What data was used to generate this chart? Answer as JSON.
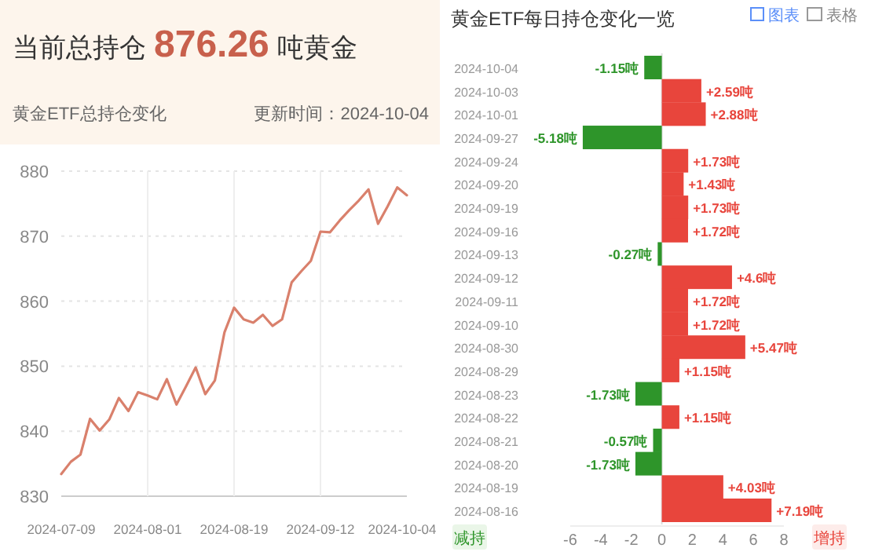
{
  "chart_data": [
    {
      "type": "line",
      "title": "当前总持仓 876.26 吨黄金",
      "subtitle": "黄金ETF总持仓变化",
      "annotations": [
        "更新时间：2024-10-04"
      ],
      "categories": [
        "2024-07-09",
        null,
        null,
        null,
        null,
        null,
        null,
        null,
        null,
        "2024-08-01",
        null,
        null,
        null,
        null,
        null,
        null,
        null,
        null,
        "2024-08-19",
        null,
        null,
        null,
        null,
        null,
        null,
        null,
        null,
        "2024-09-12",
        null,
        null,
        null,
        null,
        null,
        null,
        null,
        null,
        "2024-10-04"
      ],
      "series": [
        {
          "color": "#d9806c",
          "values": [
            833.4,
            835.3,
            836.4,
            841.9,
            840.1,
            841.8,
            845.1,
            843.1,
            846.0,
            845.5,
            844.9,
            848.0,
            844.1,
            846.9,
            849.8,
            845.7,
            847.8,
            855.2,
            859.0,
            857.2,
            856.7,
            857.9,
            856.2,
            857.2,
            862.9,
            864.6,
            866.2,
            870.7,
            870.6,
            872.4,
            874.0,
            875.5,
            877.2,
            871.9,
            874.6,
            877.5,
            876.3
          ]
        }
      ],
      "ylim": [
        830,
        880
      ],
      "yticks": [
        830,
        840,
        850,
        860,
        870,
        880
      ],
      "grid": true
    },
    {
      "type": "bar",
      "orientation": "horizontal",
      "title": "黄金ETF每日持仓变化一览",
      "annotations": [
        "图表",
        "表格",
        "减持",
        "增持"
      ],
      "categories": [
        "2024-10-04",
        "2024-10-03",
        "2024-10-01",
        "2024-09-27",
        "2024-09-24",
        "2024-09-20",
        "2024-09-19",
        "2024-09-16",
        "2024-09-13",
        "2024-09-12",
        "2024-09-11",
        "2024-09-10",
        "2024-08-30",
        "2024-08-29",
        "2024-08-23",
        "2024-08-22",
        "2024-08-21",
        "2024-08-20",
        "2024-08-19",
        "2024-08-16"
      ],
      "values": [
        -1.15,
        2.59,
        2.88,
        -5.18,
        1.73,
        1.43,
        1.73,
        1.72,
        -0.27,
        4.6,
        1.72,
        1.72,
        5.47,
        1.15,
        -1.73,
        1.15,
        -0.57,
        -1.73,
        4.03,
        7.19
      ],
      "colors": [
        "#2e952a",
        "#e8453c",
        "#e8453c",
        "#2e952a",
        "#e8453c",
        "#e8453c",
        "#e8453c",
        "#e8453c",
        "#2e952a",
        "#e8453c",
        "#e8453c",
        "#e8453c",
        "#e8453c",
        "#e8453c",
        "#2e952a",
        "#e8453c",
        "#2e952a",
        "#2e952a",
        "#e8453c",
        "#e8453c"
      ],
      "value_labels": [
        "-1.15吨",
        "+2.59吨",
        "+2.88吨",
        "-5.18吨",
        "+1.73吨",
        "+1.43吨",
        "+1.73吨",
        "+1.72吨",
        "-0.27吨",
        "+4.6吨",
        "+1.72吨",
        "+1.72吨",
        "+5.47吨",
        "+1.15吨",
        "-1.73吨",
        "+1.15吨",
        "-0.57吨",
        "-1.73吨",
        "+4.03吨",
        "+7.19吨"
      ],
      "xlim": [
        -6,
        8
      ],
      "xticks": [
        -6,
        -4,
        -2,
        0,
        2,
        4,
        6,
        8
      ]
    }
  ]
}
